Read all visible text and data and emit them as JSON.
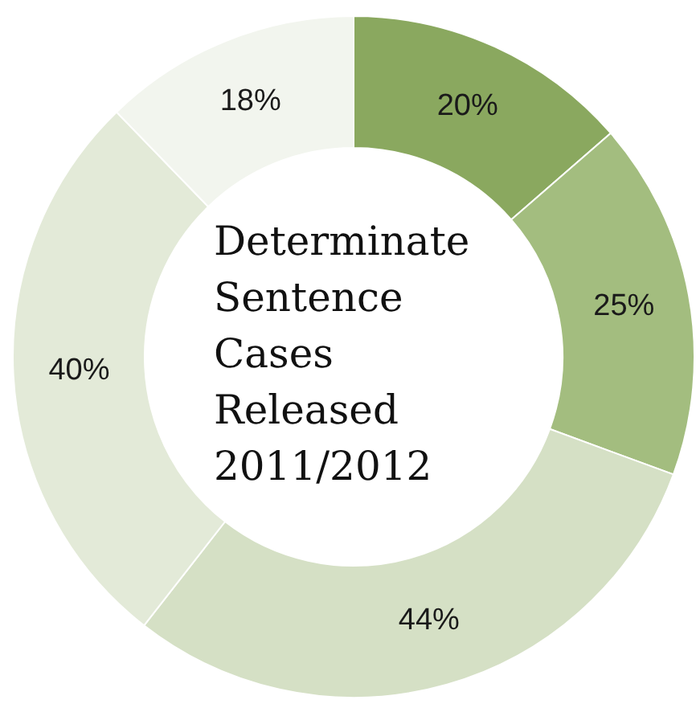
{
  "chart_data": {
    "type": "donut",
    "title": "Determinate Sentence Cases Released 2011/2012",
    "categories": [
      null,
      null,
      null,
      null,
      null
    ],
    "values": [
      20,
      25,
      44,
      40,
      18
    ],
    "colors": [
      "#8aa85f",
      "#a3bd7f",
      "#d5e0c5",
      "#e3ead8",
      "#f2f5ee"
    ],
    "value_labels": [
      "20%",
      "25%",
      "44%",
      "40%",
      "18%"
    ]
  }
}
